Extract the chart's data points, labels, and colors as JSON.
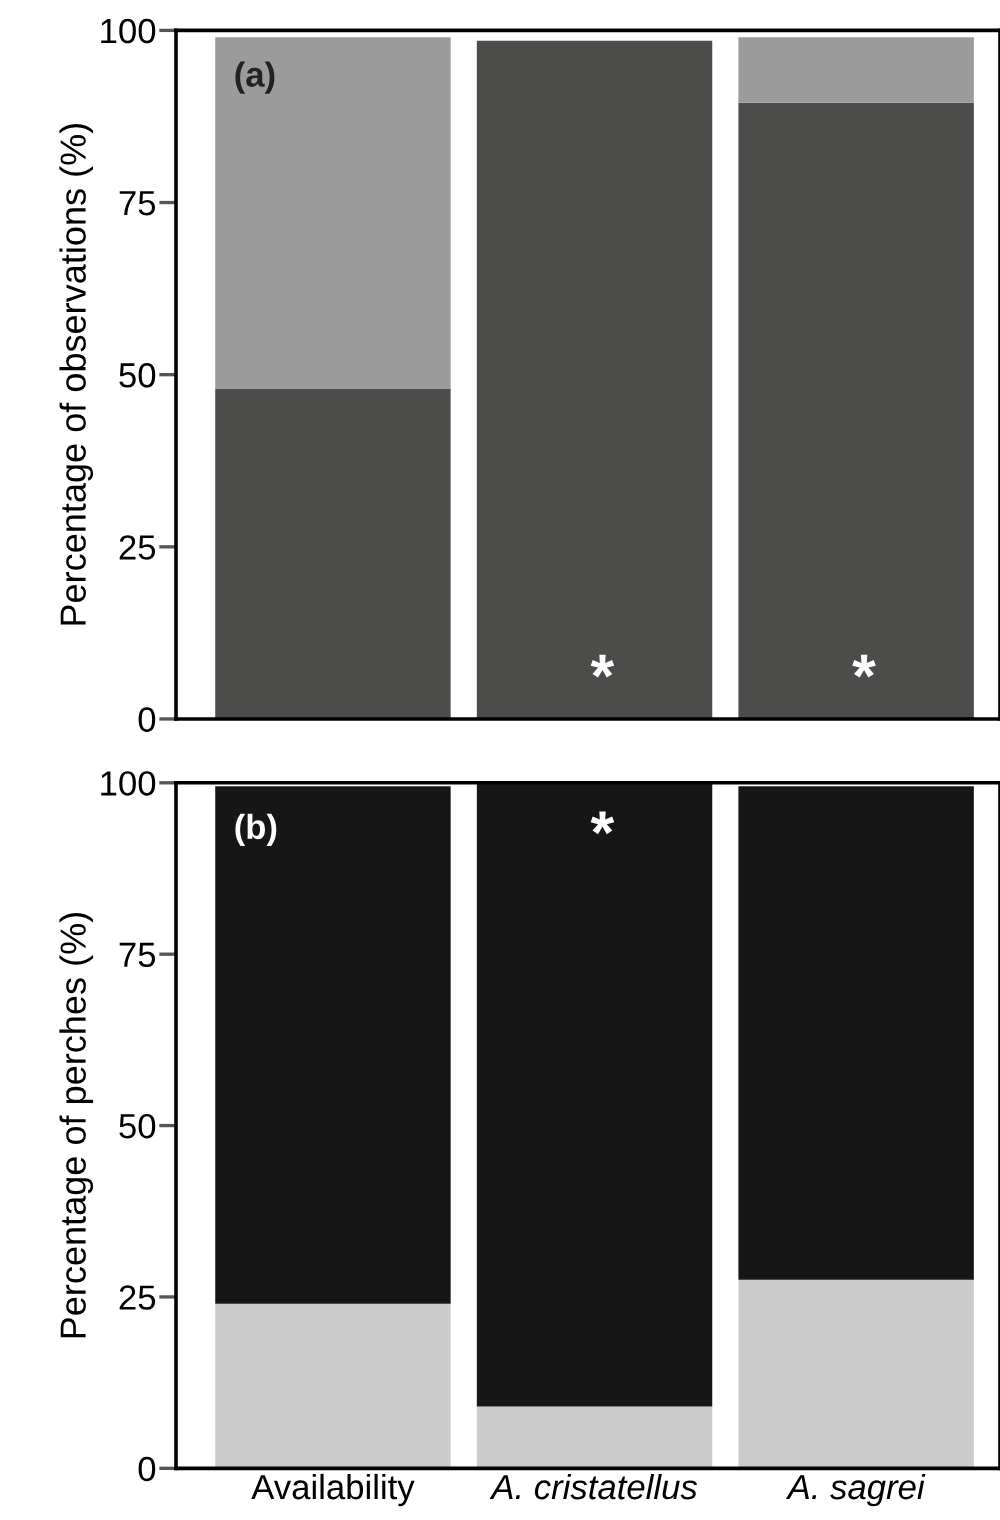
{
  "chart_data": [
    {
      "type": "bar",
      "stacked": true,
      "ylabel": "Percentage of observations (%)",
      "ylim": [
        0,
        100
      ],
      "yticks": [
        0,
        25,
        50,
        75,
        100
      ],
      "tick_labels": "y",
      "series": [
        {
          "color": "#4c4c4b",
          "values": [
            48,
            98.5,
            89.5
          ]
        },
        {
          "color": "#9a9b9a",
          "values": [
            51,
            0,
            9.5
          ]
        }
      ],
      "annotations": [
        "(a)",
        "*",
        "*"
      ]
    },
    {
      "type": "bar",
      "stacked": true,
      "ylabel": "Percentage of perches (%)",
      "categories": [
        "Availability",
        "A. cristatellus",
        "A. sagrei"
      ],
      "ylim": [
        0,
        100
      ],
      "yticks": [
        0,
        25,
        50,
        75,
        100
      ],
      "series": [
        {
          "color": "#cbcccb",
          "values": [
            24,
            9,
            27.5
          ]
        },
        {
          "color": "#161616",
          "values": [
            75.5,
            91,
            72
          ]
        }
      ],
      "annotations": [
        "(b)",
        "*"
      ]
    }
  ]
}
